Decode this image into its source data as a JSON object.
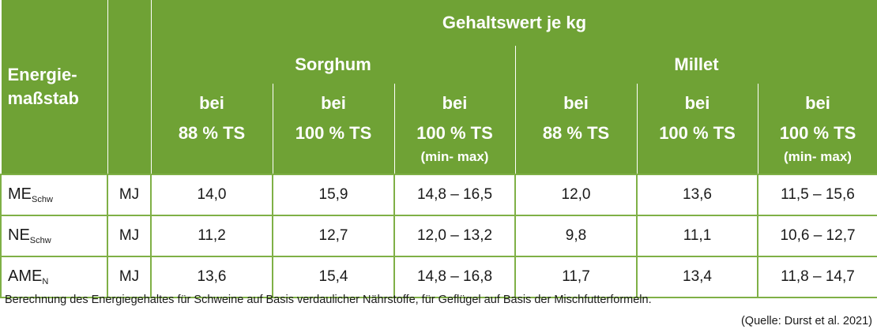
{
  "colors": {
    "header_bg": "#6fa235",
    "border": "#7fb046",
    "header_text": "#ffffff"
  },
  "header": {
    "corner_line1": "Energie-",
    "corner_line2": "maßstab",
    "group_title": "Gehaltswert je kg",
    "sorghum": "Sorghum",
    "millet": "Millet",
    "columns": [
      {
        "line1": "bei",
        "line2": "88 % TS",
        "line3": ""
      },
      {
        "line1": "bei",
        "line2": "100 % TS",
        "line3": ""
      },
      {
        "line1": "bei",
        "line2": "100 % TS",
        "line3": "(min- max)"
      },
      {
        "line1": "bei",
        "line2": "88 % TS",
        "line3": ""
      },
      {
        "line1": "bei",
        "line2": "100 % TS",
        "line3": ""
      },
      {
        "line1": "bei",
        "line2": "100 % TS",
        "line3": "(min- max)"
      }
    ]
  },
  "rows": [
    {
      "label": "ME",
      "sub": "Schw",
      "unit": "MJ",
      "values": [
        "14,0",
        "15,9",
        "14,8 – 16,5",
        "12,0",
        "13,6",
        "11,5 – 15,6"
      ]
    },
    {
      "label": "NE",
      "sub": "Schw",
      "unit": "MJ",
      "values": [
        "11,2",
        "12,7",
        "12,0 – 13,2",
        "9,8",
        "11,1",
        "10,6 – 12,7"
      ]
    },
    {
      "label": "AME",
      "sub": "N",
      "unit": "MJ",
      "values": [
        "13,6",
        "15,4",
        "14,8 – 16,8",
        "11,7",
        "13,4",
        "11,8 – 14,7"
      ]
    }
  ],
  "footnote": "Berechnung des Energiegehaltes für Schweine auf Basis verdaulicher Nährstoffe, für Geflügel auf Basis der Mischfutterformeln.",
  "source": "(Quelle: Durst et al. 2021)"
}
